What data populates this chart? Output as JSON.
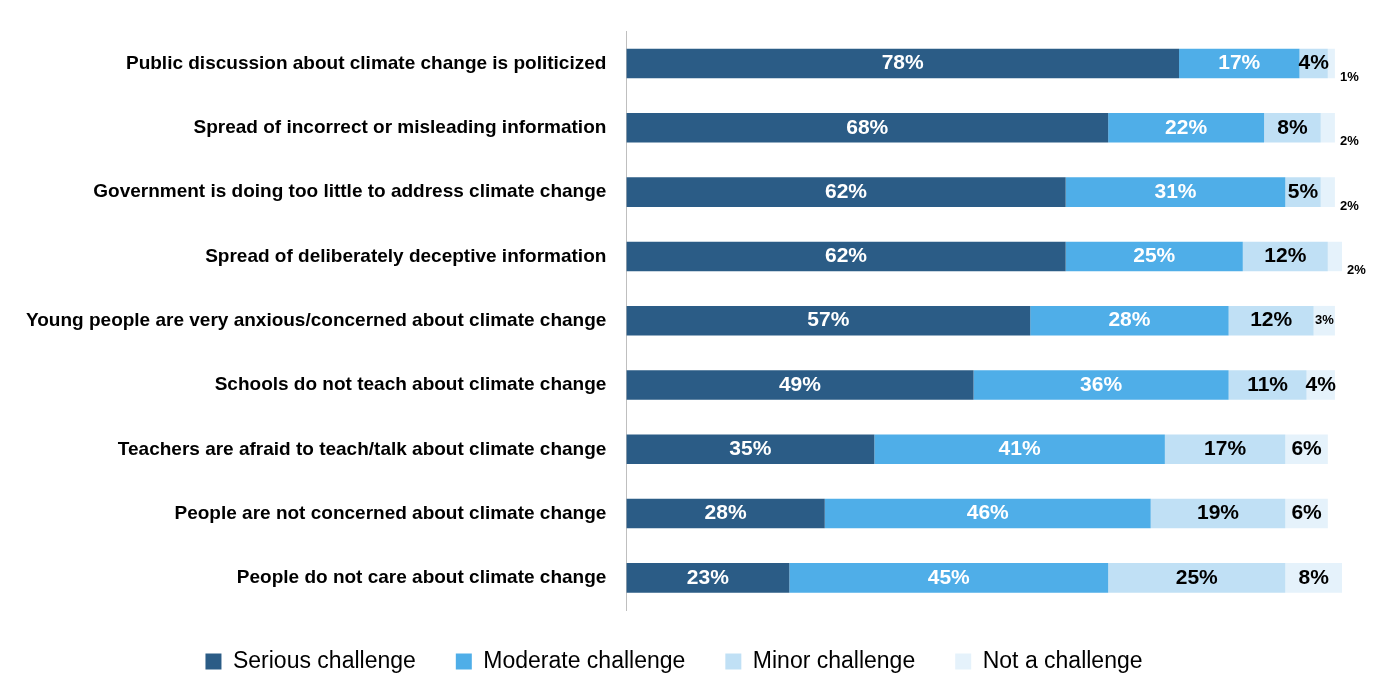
{
  "chart_data": {
    "type": "bar",
    "orientation": "horizontal",
    "stacked": true,
    "legend": "bottom",
    "grid": false,
    "tick_labels": "y",
    "categories": [
      "Public discussion about climate change is politicized",
      "Spread of incorrect or misleading information",
      "Government is doing too little to address climate change",
      "Spread of deliberately deceptive information",
      "Young people are very anxious/concerned about climate change",
      "Schools do not teach about climate change",
      "Teachers are afraid to teach/talk about climate change",
      "People are not concerned about climate change",
      "People do not care about climate change"
    ],
    "series": [
      {
        "name": "Serious challenge",
        "color": "#2b5c86",
        "values": [
          78,
          68,
          62,
          62,
          57,
          49,
          35,
          28,
          23
        ],
        "value_labels": [
          "78%",
          "68%",
          "62%",
          "62%",
          "57%",
          "49%",
          "35%",
          "28%",
          "23%"
        ]
      },
      {
        "name": "Moderate challenge",
        "color": "#4faee8",
        "values": [
          17,
          22,
          31,
          25,
          28,
          36,
          41,
          46,
          45
        ],
        "value_labels": [
          "17%",
          "22%",
          "31%",
          "25%",
          "28%",
          "36%",
          "41%",
          "46%",
          "45%"
        ]
      },
      {
        "name": "Minor challenge",
        "color": "#c0e0f5",
        "values": [
          4,
          8,
          5,
          12,
          12,
          11,
          17,
          19,
          25
        ],
        "value_labels": [
          "4%",
          "8%",
          "5%",
          "12%",
          "12%",
          "11%",
          "17%",
          "19%",
          "25%"
        ]
      },
      {
        "name": "Not a challenge",
        "color": "#e5f2fb",
        "values": [
          1,
          2,
          2,
          2,
          3,
          4,
          6,
          6,
          8
        ],
        "value_labels": [
          "1%",
          "2%",
          "2%",
          "2%",
          "3%",
          "4%",
          "6%",
          "6%",
          "8%"
        ]
      }
    ]
  }
}
